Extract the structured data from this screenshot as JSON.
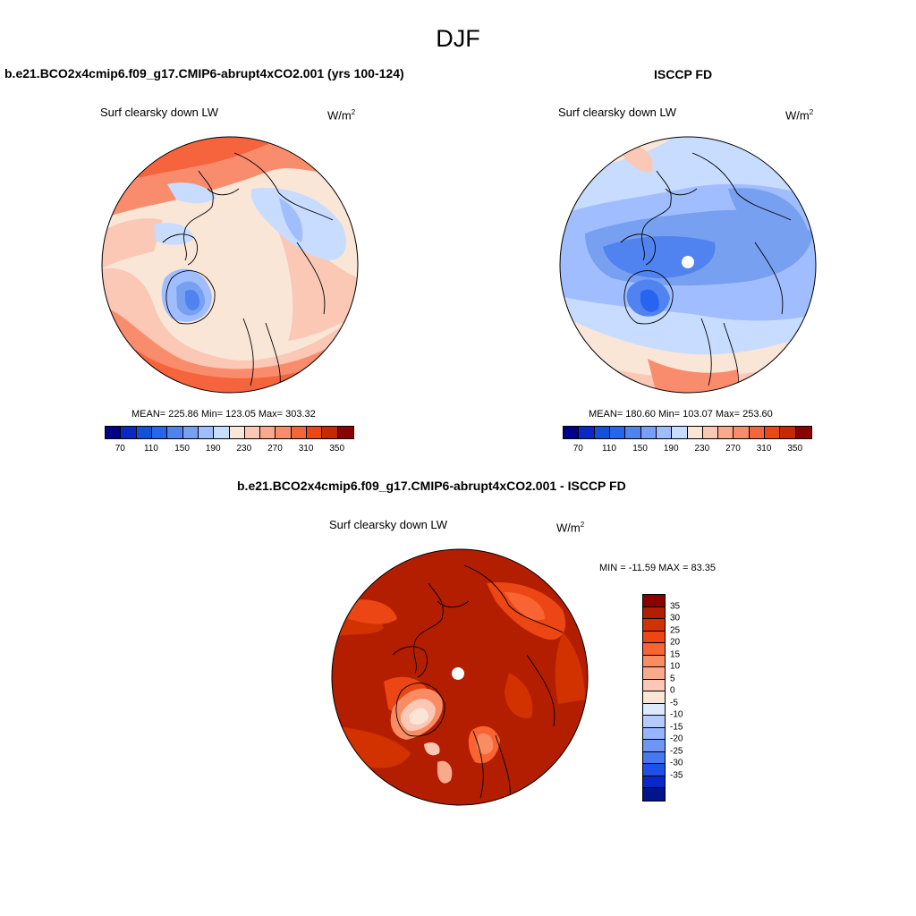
{
  "figure_title": "DJF",
  "panels": {
    "left": {
      "title": "b.e21.BCO2x4cmip6.f09_g17.CMIP6-abrupt4xCO2.001 (yrs 100-124)",
      "variable": "Surf clearsky down LW",
      "units": "W/m",
      "units_sup": "2",
      "stats": "MEAN= 225.86  Min= 123.05  Max= 303.32"
    },
    "right": {
      "title": "ISCCP FD",
      "variable": "Surf clearsky down LW",
      "units": "W/m",
      "units_sup": "2",
      "stats": "MEAN= 180.60  Min= 103.07  Max= 253.60"
    },
    "diff": {
      "title": "b.e21.BCO2x4cmip6.f09_g17.CMIP6-abrupt4xCO2.001 - ISCCP FD",
      "variable": "Surf clearsky down LW",
      "units": "W/m",
      "units_sup": "2",
      "stats": "MIN = -11.59 MAX =  83.35"
    }
  },
  "colorbar_abs": {
    "colors": [
      "#00008c",
      "#0a28c8",
      "#1450dc",
      "#2864f0",
      "#5082f0",
      "#78a0f0",
      "#a0beff",
      "#c8dcff",
      "#fae6d7",
      "#fac8b4",
      "#faaa8c",
      "#fa8c6e",
      "#f5643c",
      "#eb4614",
      "#c82800",
      "#8c0000"
    ],
    "tick_labels": [
      "70",
      "110",
      "150",
      "190",
      "230",
      "270",
      "310",
      "350"
    ]
  },
  "colorbar_diff": {
    "colors": [
      "#8c0000",
      "#b41e00",
      "#d23200",
      "#eb4614",
      "#fa6432",
      "#fa8c64",
      "#faaa8c",
      "#fac8b4",
      "#fae6d7",
      "#dceaff",
      "#b4ccff",
      "#96b4ff",
      "#6e96f5",
      "#4678f0",
      "#1e50e6",
      "#0a28c8",
      "#00148c"
    ],
    "tick_labels": [
      "35",
      "30",
      "25",
      "20",
      "15",
      "10",
      "5",
      "0",
      "-5",
      "-10",
      "-15",
      "-20",
      "-25",
      "-30",
      "-35"
    ]
  }
}
